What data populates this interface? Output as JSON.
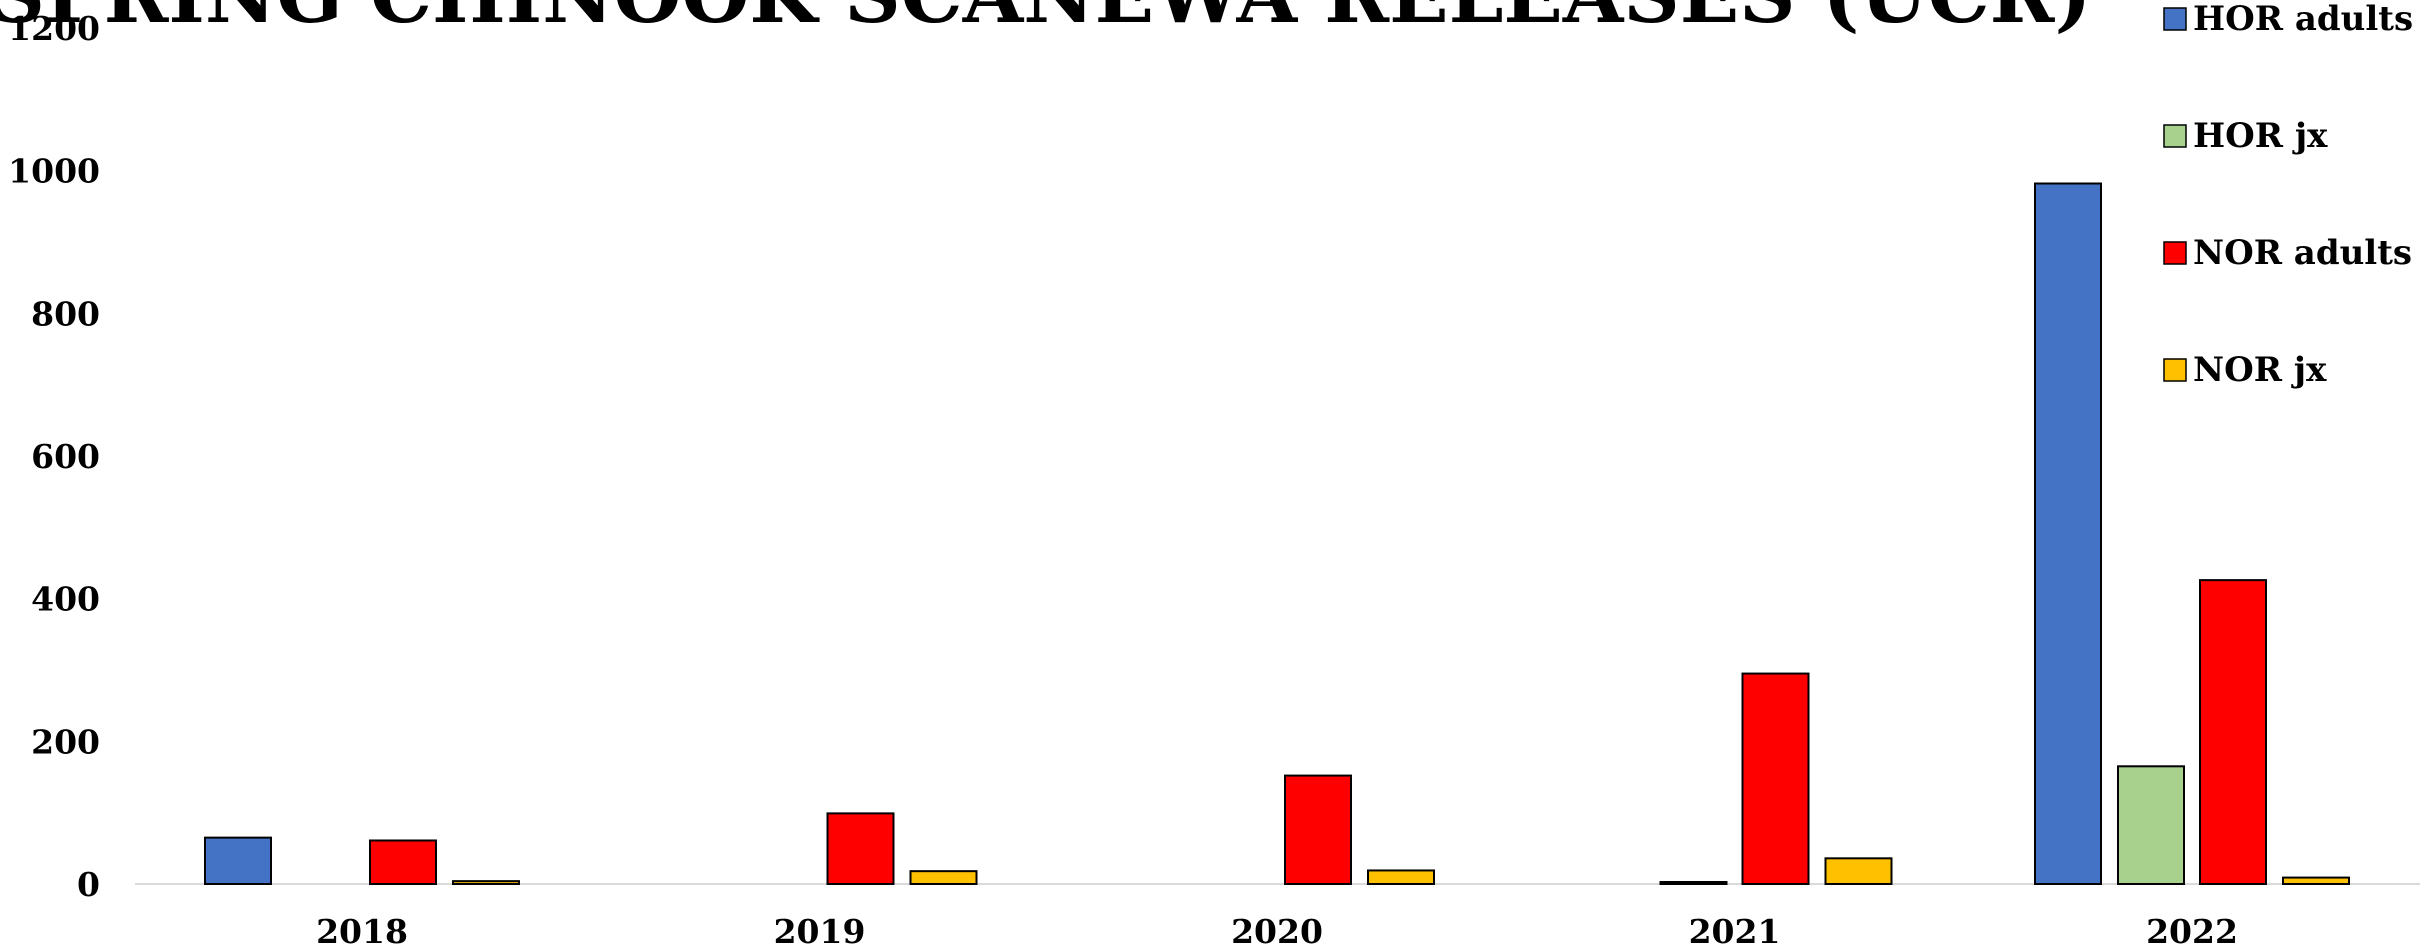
{
  "chart_data": {
    "type": "bar",
    "title": "SPRING CHINOOK SCANEWA RELEASES (UCR)",
    "categories": [
      "2018",
      "2019",
      "2020",
      "2021",
      "2022"
    ],
    "series": [
      {
        "name": "HOR adults",
        "color": "#4472C4",
        "values": [
          65,
          0,
          0,
          0,
          982
        ]
      },
      {
        "name": "HOR jx",
        "color": "#A9D18E",
        "values": [
          0,
          0,
          0,
          1,
          165
        ]
      },
      {
        "name": "NOR adults",
        "color": "#FF0000",
        "values": [
          61,
          99,
          152,
          295,
          426
        ]
      },
      {
        "name": "NOR jx",
        "color": "#FFC000",
        "values": [
          4,
          18,
          19,
          36,
          9
        ]
      }
    ],
    "ylim": [
      0,
      1200
    ],
    "yticks": [
      0,
      200,
      400,
      600,
      800,
      1000,
      1200
    ],
    "grid": false,
    "legend_position": "top-right",
    "xlabel": "",
    "ylabel": ""
  }
}
